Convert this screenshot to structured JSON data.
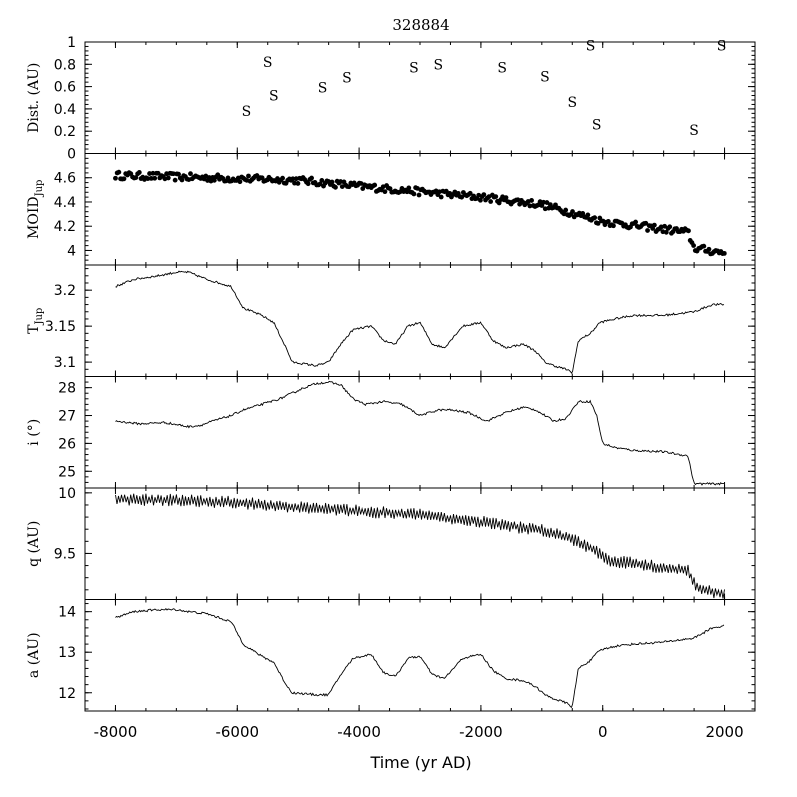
{
  "title": "328884",
  "xlabel": "Time (yr AD)",
  "x_ticks": [
    -8000,
    -6000,
    -4000,
    -2000,
    0,
    2000
  ],
  "xlim": [
    -8500,
    2500
  ],
  "chart_data": [
    {
      "id": "dist",
      "type": "scatter",
      "ylabel": "Dist. (AU)",
      "ylim": [
        0,
        1
      ],
      "y_ticks": [
        0,
        0.2,
        0.4,
        0.6,
        0.8,
        1
      ],
      "y_tick_labels": [
        "0",
        "0.2",
        "0.4",
        "0.6",
        "0.8",
        "1"
      ],
      "marker_label": "S",
      "points": [
        [
          -5850,
          0.38
        ],
        [
          -5500,
          0.82
        ],
        [
          -5400,
          0.52
        ],
        [
          -4600,
          0.59
        ],
        [
          -4200,
          0.68
        ],
        [
          -3100,
          0.77
        ],
        [
          -2700,
          0.8
        ],
        [
          -1650,
          0.77
        ],
        [
          -950,
          0.69
        ],
        [
          -500,
          0.46
        ],
        [
          -200,
          0.97
        ],
        [
          -100,
          0.26
        ],
        [
          1500,
          0.21
        ],
        [
          1950,
          0.97
        ]
      ]
    },
    {
      "id": "moid",
      "type": "scatter",
      "ylabel": "MOID",
      "ylabel_sub": "Jup",
      "ylim": [
        3.88,
        4.8
      ],
      "y_ticks": [
        4,
        4.2,
        4.4,
        4.6
      ],
      "y_tick_labels": [
        "4",
        "4.2",
        "4.4",
        "4.6"
      ],
      "trend": [
        [
          -8000,
          4.62
        ],
        [
          -5000,
          4.58
        ],
        [
          -4000,
          4.53
        ],
        [
          -2000,
          4.44
        ],
        [
          -1000,
          4.38
        ],
        [
          0,
          4.24
        ],
        [
          1400,
          4.15
        ],
        [
          1500,
          4.02
        ],
        [
          2000,
          3.98
        ]
      ],
      "scatter_amplitude": 0.03
    },
    {
      "id": "tjup",
      "type": "line",
      "ylabel": "T",
      "ylabel_sub": "Jup",
      "ylim": [
        3.08,
        3.235
      ],
      "y_ticks": [
        3.1,
        3.15,
        3.2
      ],
      "y_tick_labels": [
        "3.1",
        "3.15",
        "3.2"
      ],
      "x": [
        -8000,
        -7700,
        -7300,
        -7000,
        -6800,
        -6500,
        -6100,
        -5900,
        -5600,
        -5400,
        -5200,
        -5100,
        -4700,
        -4500,
        -4300,
        -4100,
        -3800,
        -3600,
        -3400,
        -3200,
        -3000,
        -2800,
        -2600,
        -2300,
        -2000,
        -1800,
        -1600,
        -1300,
        -1100,
        -950,
        -800,
        -600,
        -500,
        -400,
        -200,
        -50,
        200,
        500,
        1000,
        1500,
        1800,
        2000
      ],
      "y": [
        3.205,
        3.215,
        3.22,
        3.225,
        3.225,
        3.215,
        3.205,
        3.175,
        3.165,
        3.155,
        3.12,
        3.1,
        3.095,
        3.1,
        3.125,
        3.145,
        3.15,
        3.13,
        3.125,
        3.15,
        3.155,
        3.125,
        3.12,
        3.15,
        3.155,
        3.13,
        3.12,
        3.125,
        3.115,
        3.1,
        3.095,
        3.09,
        3.085,
        3.13,
        3.14,
        3.155,
        3.16,
        3.165,
        3.165,
        3.17,
        3.18,
        3.18
      ]
    },
    {
      "id": "incl",
      "type": "line",
      "ylabel": "i (°)",
      "ylim": [
        24.4,
        28.4
      ],
      "y_ticks": [
        25,
        26,
        27,
        28
      ],
      "y_tick_labels": [
        "25",
        "26",
        "27",
        "28"
      ],
      "x": [
        -8000,
        -7600,
        -7200,
        -6800,
        -6600,
        -6400,
        -6100,
        -5900,
        -5600,
        -5300,
        -5100,
        -4900,
        -4700,
        -4500,
        -4300,
        -4100,
        -3900,
        -3600,
        -3300,
        -3000,
        -2700,
        -2500,
        -2200,
        -1900,
        -1600,
        -1300,
        -1100,
        -800,
        -600,
        -400,
        -200,
        -100,
        0,
        200,
        500,
        1000,
        1400,
        1500,
        1700,
        2000
      ],
      "y": [
        26.8,
        26.7,
        26.75,
        26.6,
        26.65,
        26.8,
        27.0,
        27.2,
        27.4,
        27.6,
        27.8,
        28.0,
        28.15,
        28.2,
        28.1,
        27.6,
        27.4,
        27.5,
        27.4,
        27.0,
        27.2,
        27.2,
        27.1,
        26.8,
        27.1,
        27.3,
        27.2,
        26.8,
        26.9,
        27.5,
        27.5,
        27.0,
        26.0,
        25.85,
        25.75,
        25.7,
        25.55,
        24.55,
        24.55,
        24.55
      ]
    },
    {
      "id": "q",
      "type": "line",
      "ylabel": "q (AU)",
      "ylim": [
        9.12,
        10.04
      ],
      "y_ticks": [
        9.5,
        10
      ],
      "y_tick_labels": [
        "9.5",
        "10"
      ],
      "x": [
        -8000,
        -7000,
        -6000,
        -5000,
        -4000,
        -3000,
        -2000,
        -1000,
        -500,
        -100,
        100,
        500,
        1000,
        1400,
        1500,
        1600,
        2000
      ],
      "y": [
        9.95,
        9.94,
        9.92,
        9.88,
        9.85,
        9.82,
        9.76,
        9.69,
        9.62,
        9.52,
        9.44,
        9.42,
        9.38,
        9.36,
        9.26,
        9.2,
        9.17
      ],
      "oscillation_amplitude": 0.04
    },
    {
      "id": "a",
      "type": "line",
      "ylabel": "a (AU)",
      "ylim": [
        11.55,
        14.3
      ],
      "y_ticks": [
        12,
        13,
        14
      ],
      "y_tick_labels": [
        "12",
        "13",
        "14"
      ],
      "x": [
        -8000,
        -7700,
        -7300,
        -7000,
        -6800,
        -6500,
        -6100,
        -5900,
        -5600,
        -5400,
        -5200,
        -5100,
        -4700,
        -4500,
        -4300,
        -4100,
        -3800,
        -3600,
        -3400,
        -3200,
        -3000,
        -2800,
        -2600,
        -2300,
        -2000,
        -1800,
        -1600,
        -1300,
        -1100,
        -950,
        -800,
        -600,
        -500,
        -400,
        -200,
        -50,
        200,
        500,
        1000,
        1500,
        1800,
        2000
      ],
      "y": [
        13.85,
        14.0,
        14.05,
        14.05,
        14.0,
        13.95,
        13.75,
        13.2,
        12.9,
        12.75,
        12.2,
        12.0,
        11.95,
        11.95,
        12.45,
        12.85,
        12.95,
        12.5,
        12.4,
        12.85,
        12.9,
        12.45,
        12.35,
        12.85,
        12.95,
        12.55,
        12.35,
        12.3,
        12.15,
        11.95,
        11.85,
        11.75,
        11.65,
        12.6,
        12.8,
        13.05,
        13.15,
        13.2,
        13.25,
        13.35,
        13.6,
        13.65
      ]
    }
  ]
}
